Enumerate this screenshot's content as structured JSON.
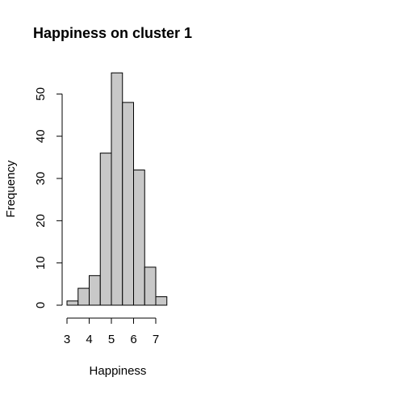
{
  "chart_data": {
    "type": "bar",
    "title": "Happiness on cluster 1",
    "xlabel": "Happiness",
    "ylabel": "Frequency",
    "bin_edges": [
      3.0,
      3.5,
      4.0,
      4.5,
      5.0,
      5.5,
      6.0,
      6.5,
      7.0,
      7.5
    ],
    "values": [
      1,
      4,
      7,
      36,
      55,
      48,
      32,
      9,
      2
    ],
    "xlim": [
      3,
      7.5
    ],
    "ylim": [
      0,
      55
    ],
    "x_ticks": [
      "3",
      "4",
      "5",
      "6",
      "7"
    ],
    "y_ticks": [
      "0",
      "10",
      "20",
      "30",
      "40",
      "50"
    ],
    "bar_color": "#c8c8c8",
    "grid": false,
    "legend": "none"
  }
}
